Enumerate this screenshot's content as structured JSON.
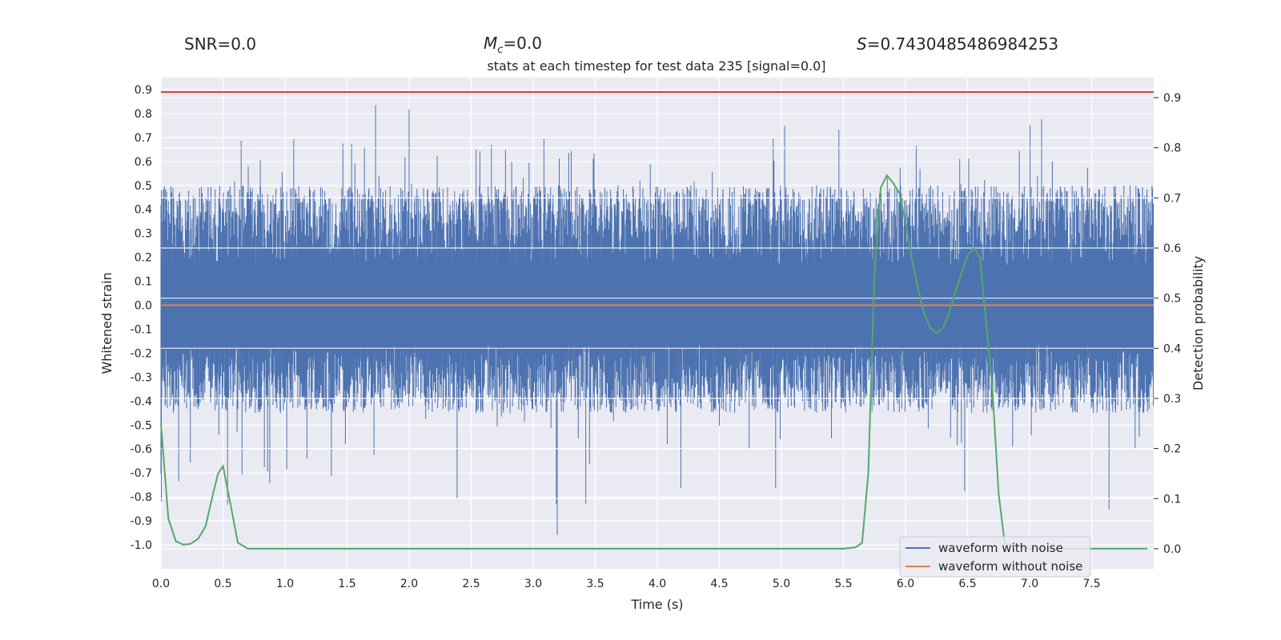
{
  "chart_data": {
    "type": "line",
    "header": {
      "snr": "SNR=0.0",
      "mc_symbol": "M",
      "mc_sub": "c",
      "mc_value": "=0.0",
      "s_symbol": "S",
      "s_value": "=0.7430485486984253"
    },
    "title": "stats at each timestep for test data 235 [signal=0.0]",
    "xlabel": "Time (s)",
    "ylabel_left": "Whitened strain",
    "ylabel_right": "Detection probability",
    "xlim": [
      0.0,
      8.0
    ],
    "ylim_left": [
      -1.1,
      0.95
    ],
    "ylim_right": [
      -0.04,
      0.94
    ],
    "x_ticks": [
      "0.0",
      "0.5",
      "1.0",
      "1.5",
      "2.0",
      "2.5",
      "3.0",
      "3.5",
      "4.0",
      "4.5",
      "5.0",
      "5.5",
      "6.0",
      "6.5",
      "7.0",
      "7.5"
    ],
    "y_left_ticks": [
      "0.9",
      "0.8",
      "0.7",
      "0.6",
      "0.5",
      "0.4",
      "0.3",
      "0.2",
      "0.1",
      "0.0",
      "-0.1",
      "-0.2",
      "-0.3",
      "-0.4",
      "-0.5",
      "-0.6",
      "-0.7",
      "-0.8",
      "-0.9",
      "-1.0"
    ],
    "y_right_ticks": [
      "0.9",
      "0.8",
      "0.7",
      "0.6",
      "0.5",
      "0.4",
      "0.3",
      "0.2",
      "0.1",
      "0.0"
    ],
    "threshold": {
      "value": 0.89,
      "color": "#d62728"
    },
    "series": [
      {
        "name": "waveform with noise",
        "color": "#4c72b0",
        "axis": "left",
        "typical_range": [
          -0.45,
          0.5
        ],
        "max": 0.89,
        "min": -1.0
      },
      {
        "name": "waveform without noise",
        "color": "#dd8452",
        "axis": "left",
        "values": [
          0.0,
          0.0
        ]
      },
      {
        "name": "detection probability",
        "color": "#55a868",
        "axis": "right",
        "in_legend": false,
        "x": [
          0.0,
          0.06,
          0.12,
          0.18,
          0.24,
          0.3,
          0.36,
          0.42,
          0.46,
          0.5,
          0.56,
          0.62,
          0.7,
          0.8,
          1.0,
          2.0,
          3.0,
          4.0,
          5.0,
          5.5,
          5.6,
          5.65,
          5.7,
          5.75,
          5.8,
          5.85,
          5.9,
          5.95,
          6.0,
          6.05,
          6.1,
          6.15,
          6.2,
          6.25,
          6.3,
          6.35,
          6.4,
          6.45,
          6.5,
          6.55,
          6.6,
          6.65,
          6.7,
          6.75,
          6.8,
          7.0,
          7.5,
          7.95
        ],
        "values": [
          0.25,
          0.06,
          0.015,
          0.008,
          0.01,
          0.02,
          0.045,
          0.11,
          0.15,
          0.165,
          0.09,
          0.012,
          0.0,
          0.0,
          0.0,
          0.0,
          0.0,
          0.0,
          0.0,
          0.0,
          0.003,
          0.012,
          0.15,
          0.55,
          0.72,
          0.745,
          0.73,
          0.71,
          0.65,
          0.58,
          0.52,
          0.47,
          0.44,
          0.43,
          0.44,
          0.47,
          0.51,
          0.55,
          0.585,
          0.6,
          0.58,
          0.45,
          0.32,
          0.11,
          0.01,
          0.0,
          0.0,
          0.0
        ]
      }
    ],
    "legend": [
      "waveform with noise",
      "waveform without noise"
    ],
    "legend_position": "lower-right",
    "grid": true
  }
}
